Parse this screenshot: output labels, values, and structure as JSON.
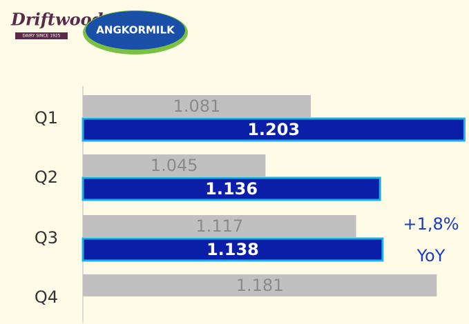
{
  "logos": {
    "brand1": "Driftwood",
    "brand1_tagline": "DAIRY SINCE 1925",
    "brand2": "ANGKORMILK"
  },
  "chart_data": {
    "type": "bar",
    "orientation": "horizontal",
    "categories": [
      "Q1",
      "Q2",
      "Q3",
      "Q4"
    ],
    "series": [
      {
        "color": "#c0c0c0",
        "values": [
          1.081,
          1.045,
          1.117,
          1.181
        ]
      },
      {
        "color": "#0a1ea8",
        "values": [
          1.203,
          1.136,
          1.138,
          null
        ]
      }
    ],
    "xlim": [
      0.9,
      1.205
    ],
    "annotations": [
      "+1,8%",
      "YoY"
    ]
  }
}
